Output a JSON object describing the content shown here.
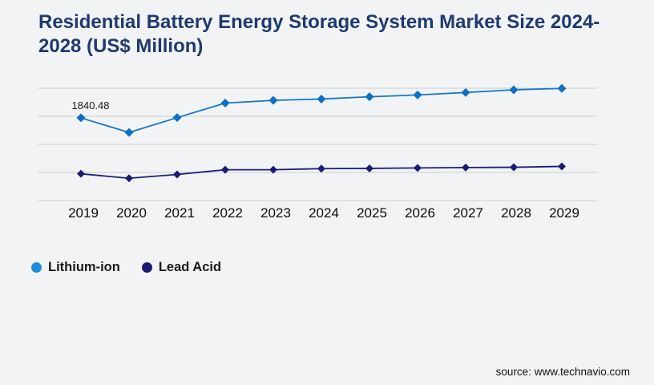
{
  "page": {
    "title": "Residential Battery Energy Storage System Market Size 2024-2028 (US$ Million)",
    "source": "source: www.technavio.com",
    "background": "#f2f3f4"
  },
  "colors": {
    "title_text": "#1e3a6e",
    "gridline": "#cccccc",
    "axis_text": "#0d0d0d",
    "annotation_text": "#1a1a1a",
    "lithium_line": "#1577cd",
    "lithium_marker": "#0e6fc5",
    "lithium_legend_dot": "#1f8ddb",
    "lead_line": "#1e1e7a",
    "lead_marker": "#1b1b72",
    "lead_legend_dot": "#1b1b72"
  },
  "legend": [
    {
      "label": "Lithium-ion",
      "color": "#1f8ddb"
    },
    {
      "label": "Lead Acid",
      "color": "#1b1b72"
    }
  ],
  "chart_data": {
    "type": "line",
    "title": "Residential Battery Energy Storage System Market Size 2024-2028 (US$ Million)",
    "categories": [
      "2019",
      "2020",
      "2021",
      "2022",
      "2023",
      "2024",
      "2025",
      "2026",
      "2027",
      "2028",
      "2029"
    ],
    "series": [
      {
        "name": "Lithium-ion",
        "line_color": "#1577cd",
        "marker_color": "#0e6fc5",
        "marker": "diamond",
        "values": [
          1840.48,
          1515,
          1845,
          2170,
          2230,
          2260,
          2310,
          2350,
          2405,
          2465,
          2495
        ]
      },
      {
        "name": "Lead Acid",
        "line_color": "#1e1e7a",
        "marker_color": "#1b1b72",
        "marker": "diamond",
        "values": [
          595,
          495,
          580,
          685,
          685,
          710,
          715,
          725,
          735,
          740,
          760
        ]
      }
    ],
    "xlabel": "",
    "ylabel": "",
    "ylim": [
      0,
      2500
    ],
    "y_gridline_count": 5,
    "y_axis_labels_visible": false,
    "grid": "horizontal",
    "legend_position": "bottom-left",
    "annotations": [
      {
        "series": "Lithium-ion",
        "category": "2019",
        "text": "1840.48"
      }
    ]
  }
}
